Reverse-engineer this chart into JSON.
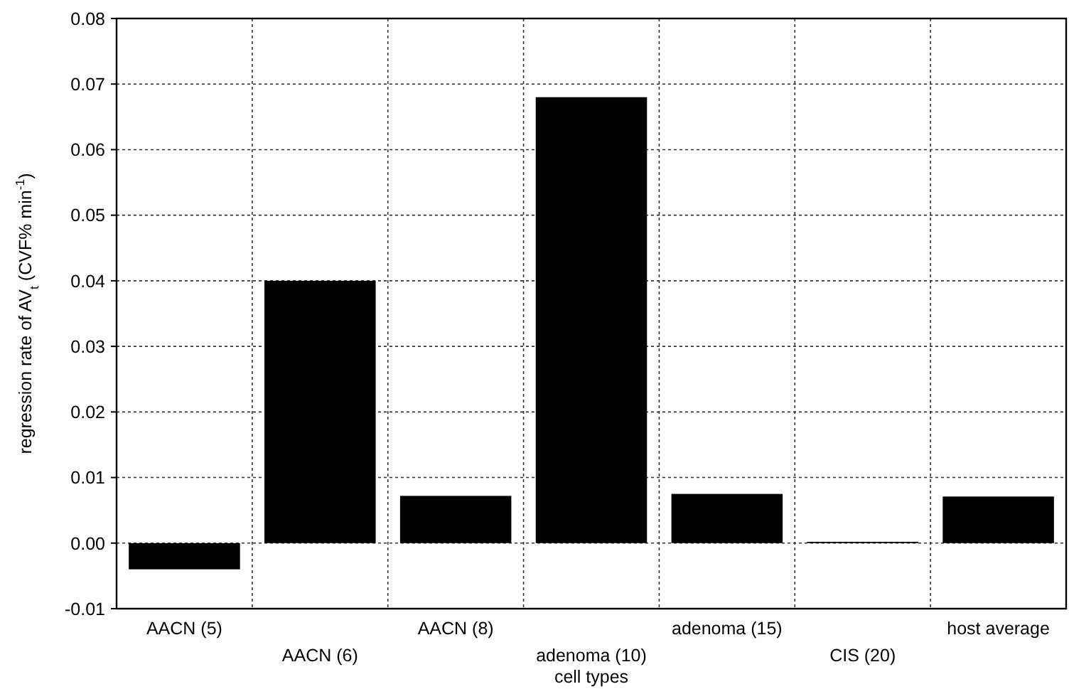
{
  "chart_data": {
    "type": "bar",
    "xlabel": "cell types",
    "ylabel": "regression rate of AV$_{t}$ (CVF% min$^{-1}$)",
    "categories": [
      "AACN (5)",
      "AACN (6)",
      "AACN (8)",
      "adenoma (10)",
      "adenoma (15)",
      "CIS (20)",
      "host average"
    ],
    "values": [
      -0.004,
      0.04,
      0.0072,
      0.068,
      0.0075,
      0.0002,
      0.0071
    ],
    "color": "#000000",
    "ylim": [
      -0.01,
      0.08
    ],
    "yticks": [
      {
        "value": -0.01,
        "label": "-0.01"
      },
      {
        "value": 0,
        "label": "0.00"
      },
      {
        "value": 0.01,
        "label": "0.01"
      },
      {
        "value": 0.02,
        "label": "0.02"
      },
      {
        "value": 0.03,
        "label": "0.03"
      },
      {
        "value": 0.04,
        "label": "0.04"
      },
      {
        "value": 0.05,
        "label": "0.05"
      },
      {
        "value": 0.06,
        "label": "0.06"
      },
      {
        "value": 0.07,
        "label": "0.07"
      },
      {
        "value": 0.08,
        "label": "0.08"
      }
    ],
    "grid": true
  }
}
